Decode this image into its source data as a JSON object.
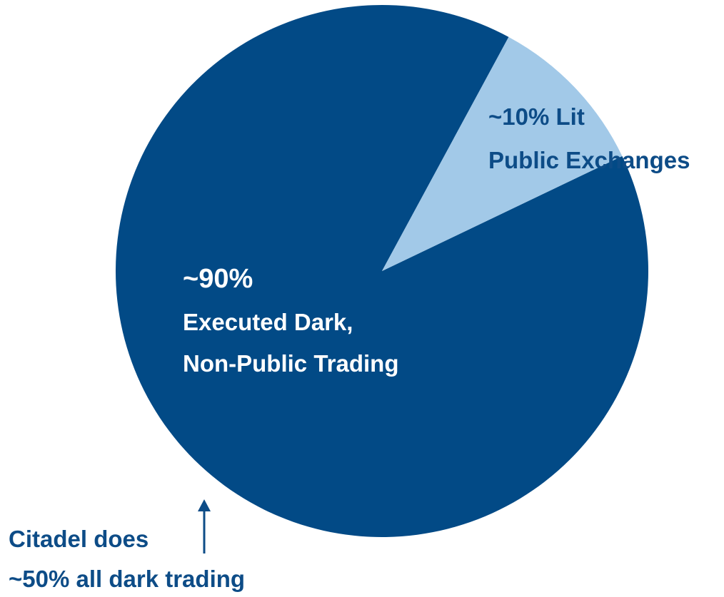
{
  "chart_data": {
    "type": "pie",
    "slices": [
      {
        "percent_label": "~90%",
        "label_lines": [
          "Executed Dark,",
          "Non-Public Trading"
        ],
        "value": 90,
        "color": "#024a86"
      },
      {
        "percent_label": "~10% Lit",
        "label_lines": [
          "Public Exchanges"
        ],
        "value": 10,
        "color": "#a2c9e8"
      }
    ],
    "annotation": {
      "lines": [
        "Citadel does",
        "~50% all dark trading"
      ],
      "color": "#0d4c87"
    }
  }
}
